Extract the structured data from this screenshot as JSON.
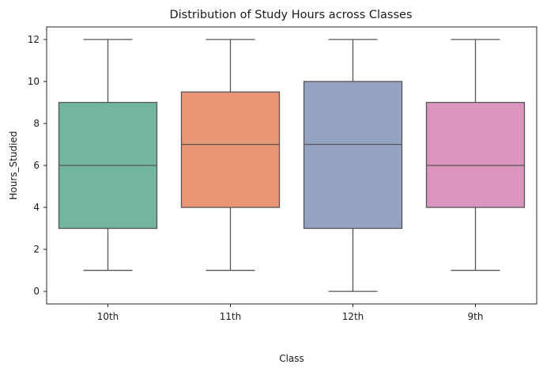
{
  "chart_data": {
    "type": "box",
    "title": "Distribution of Study Hours across Classes",
    "xlabel": "Class",
    "ylabel": "Hours_Studied",
    "ylim": [
      -0.6,
      12.6
    ],
    "yticks": [
      0,
      2,
      4,
      6,
      8,
      10,
      12
    ],
    "grid": false,
    "categories": [
      "10th",
      "11th",
      "12th",
      "9th"
    ],
    "boxes": [
      {
        "category": "10th",
        "whisker_low": 1,
        "q1": 3,
        "median": 6,
        "q3": 9,
        "whisker_high": 12,
        "color": "#72b6a1"
      },
      {
        "category": "11th",
        "whisker_low": 1,
        "q1": 4,
        "median": 7,
        "q3": 9.5,
        "whisker_high": 12,
        "color": "#e99675"
      },
      {
        "category": "12th",
        "whisker_low": 0,
        "q1": 3,
        "median": 7,
        "q3": 10,
        "whisker_high": 12,
        "color": "#95a3c3"
      },
      {
        "category": "9th",
        "whisker_low": 1,
        "q1": 4,
        "median": 6,
        "q3": 9,
        "whisker_high": 12,
        "color": "#db96c0"
      }
    ]
  }
}
